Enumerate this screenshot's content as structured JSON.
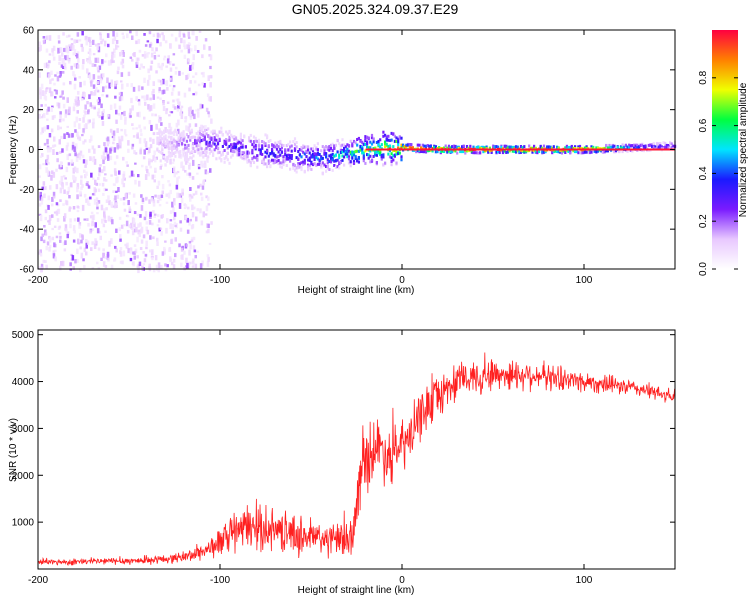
{
  "title": "GN05.2025.324.09.37.E29",
  "chart_data": [
    {
      "type": "heatmap",
      "title": "GN05.2025.324.09.37.E29",
      "xlabel": "Height of straight line (km)",
      "ylabel": "Frequency (Hz)",
      "xlim": [
        -200,
        150
      ],
      "ylim": [
        -60,
        60
      ],
      "x_ticks": [
        -200,
        -100,
        0,
        100
      ],
      "y_ticks": [
        -60,
        -40,
        -20,
        0,
        20,
        40,
        60
      ],
      "colorbar": {
        "label": "Normalized spectral amplitude",
        "range": [
          0,
          1
        ],
        "ticks": [
          0.0,
          0.2,
          0.4,
          0.6,
          0.8
        ],
        "colors": [
          "#ffffff",
          "#e8c8ff",
          "#7a1bff",
          "#1a1aff",
          "#00e5ff",
          "#00ff40",
          "#f0ff00",
          "#ff8000",
          "#ff0040"
        ]
      },
      "ridge": {
        "description_x": [
          -130,
          -110,
          -90,
          -70,
          -50,
          -40,
          -30,
          -20,
          -10,
          0,
          20,
          50,
          100,
          130,
          150
        ],
        "frequency": [
          2,
          4,
          1,
          -2,
          -4,
          -4,
          -2,
          0,
          1,
          1,
          0,
          0,
          0,
          1,
          2
        ],
        "amplitude": [
          0.15,
          0.3,
          0.35,
          0.4,
          0.45,
          0.5,
          0.6,
          0.75,
          0.9,
          0.95,
          1.0,
          1.0,
          0.95,
          0.4,
          0.3
        ]
      }
    },
    {
      "type": "line",
      "xlabel": "Height of straight line (km)",
      "ylabel": "SNR (10 * v/v)",
      "xlim": [
        -200,
        150
      ],
      "ylim": [
        0,
        5100
      ],
      "x_ticks": [
        -200,
        -100,
        0,
        100
      ],
      "y_ticks": [
        1000,
        2000,
        3000,
        4000,
        5000
      ],
      "series": [
        {
          "name": "SNR",
          "color": "#ff2020",
          "x": [
            -200,
            -180,
            -160,
            -140,
            -125,
            -115,
            -105,
            -95,
            -85,
            -75,
            -65,
            -55,
            -45,
            -35,
            -27,
            -22,
            -18,
            -12,
            -6,
            0,
            6,
            12,
            20,
            30,
            40,
            50,
            60,
            70,
            80,
            90,
            100,
            110,
            120,
            130,
            140,
            150
          ],
          "values": [
            150,
            150,
            170,
            180,
            230,
            300,
            450,
            700,
            900,
            850,
            800,
            700,
            650,
            600,
            700,
            2200,
            2500,
            2600,
            2400,
            2600,
            2900,
            3400,
            3700,
            4000,
            4100,
            4150,
            4150,
            4150,
            4100,
            4050,
            4000,
            3950,
            3900,
            3850,
            3750,
            3650
          ],
          "noise": [
            60,
            60,
            70,
            70,
            90,
            130,
            200,
            350,
            420,
            400,
            380,
            380,
            350,
            320,
            400,
            600,
            650,
            600,
            550,
            500,
            500,
            450,
            400,
            350,
            350,
            320,
            300,
            280,
            250,
            230,
            200,
            180,
            160,
            150,
            140,
            130
          ]
        }
      ]
    }
  ]
}
